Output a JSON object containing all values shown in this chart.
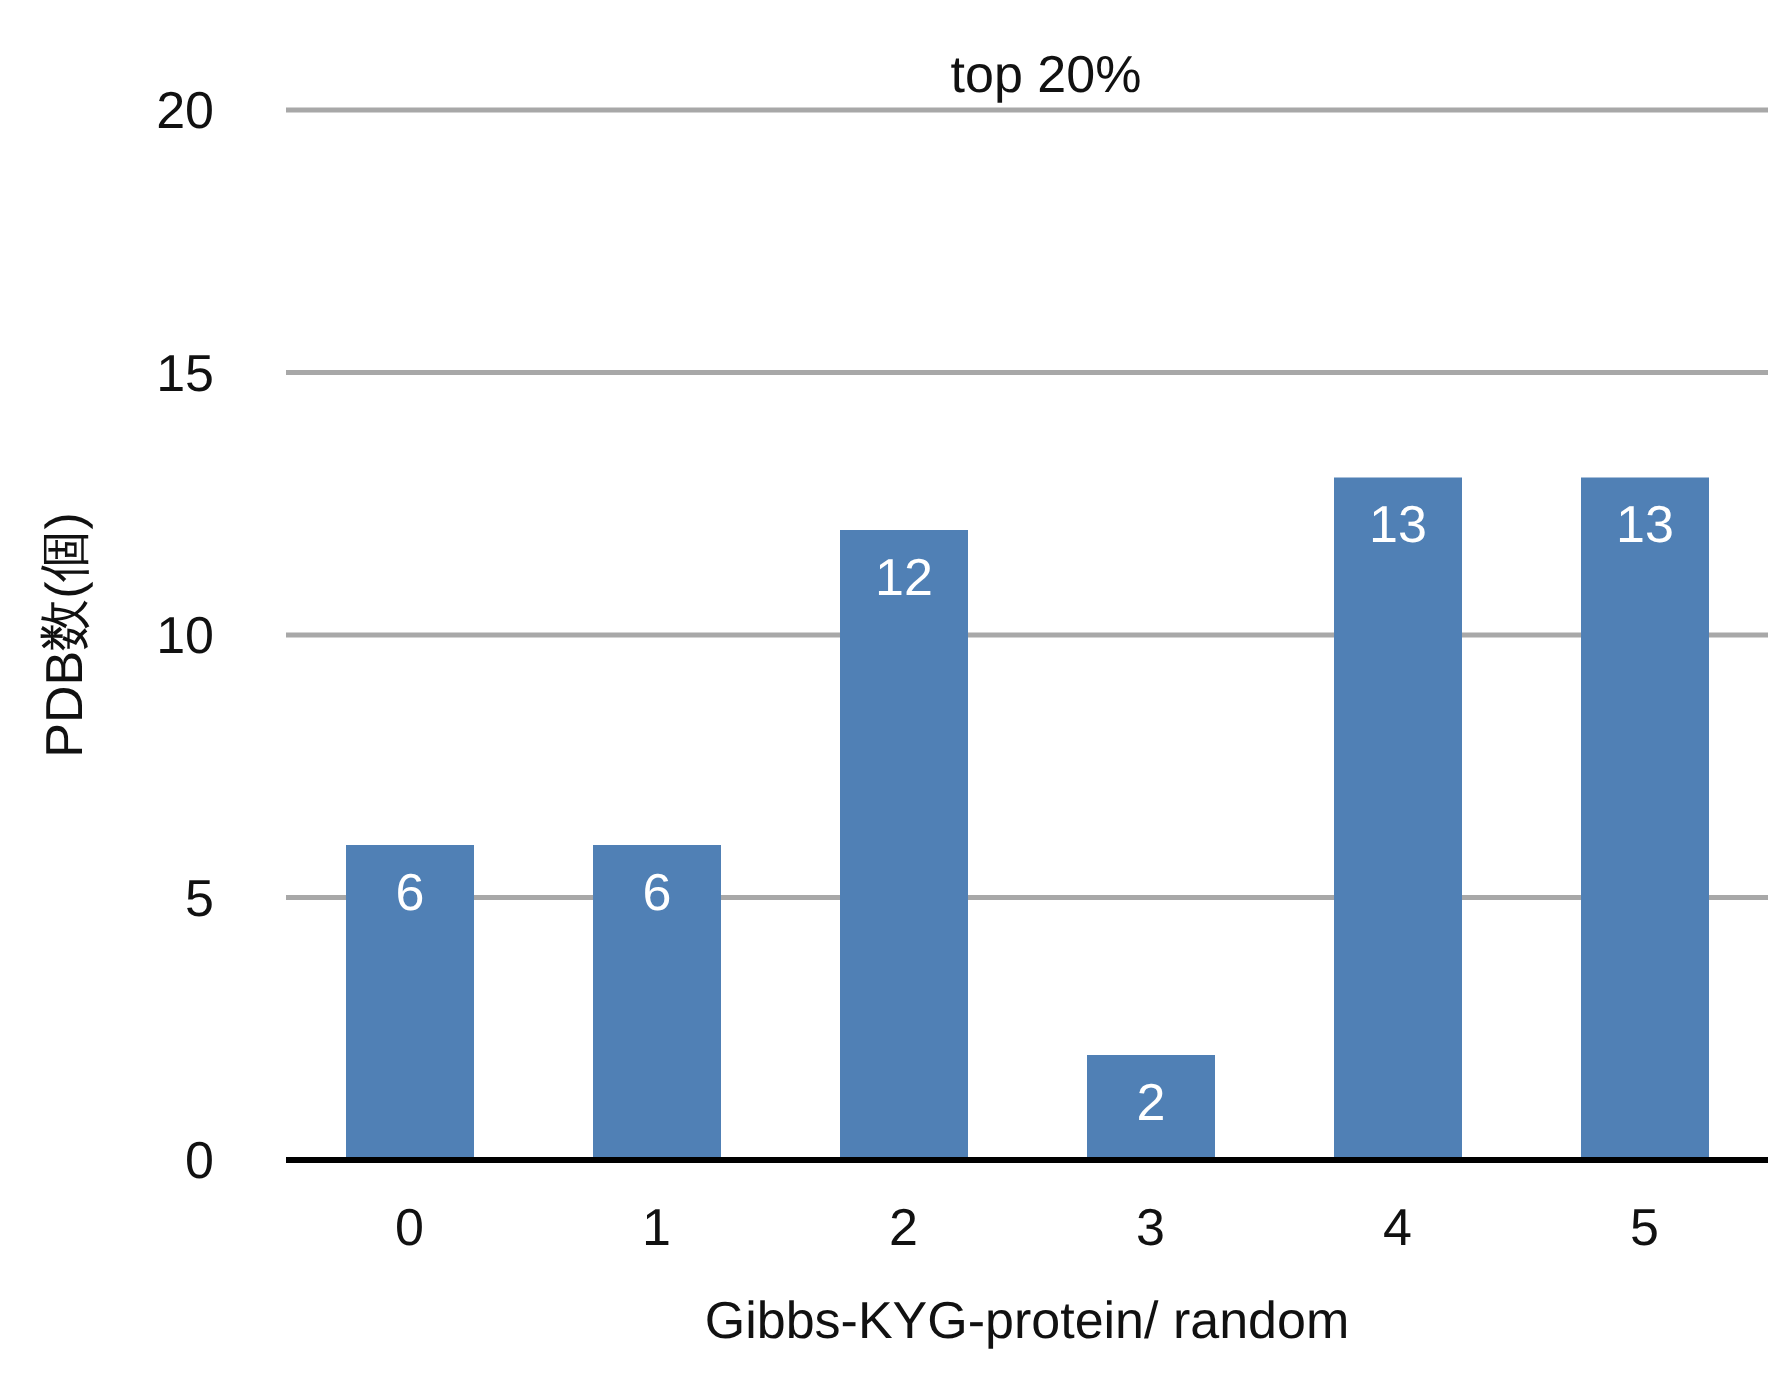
{
  "chart_data": {
    "type": "bar",
    "title": "top 20%",
    "xlabel": "Gibbs-KYG-protein/ random",
    "ylabel": "PDB数(個)",
    "categories": [
      "0",
      "1",
      "2",
      "3",
      "4",
      "5"
    ],
    "values": [
      6,
      6,
      12,
      2,
      13,
      13
    ],
    "color": "#5080b5",
    "ylim": [
      0,
      20
    ],
    "yticks": [
      0,
      5,
      10,
      15,
      20
    ],
    "grid": "y",
    "data_labels": true
  }
}
